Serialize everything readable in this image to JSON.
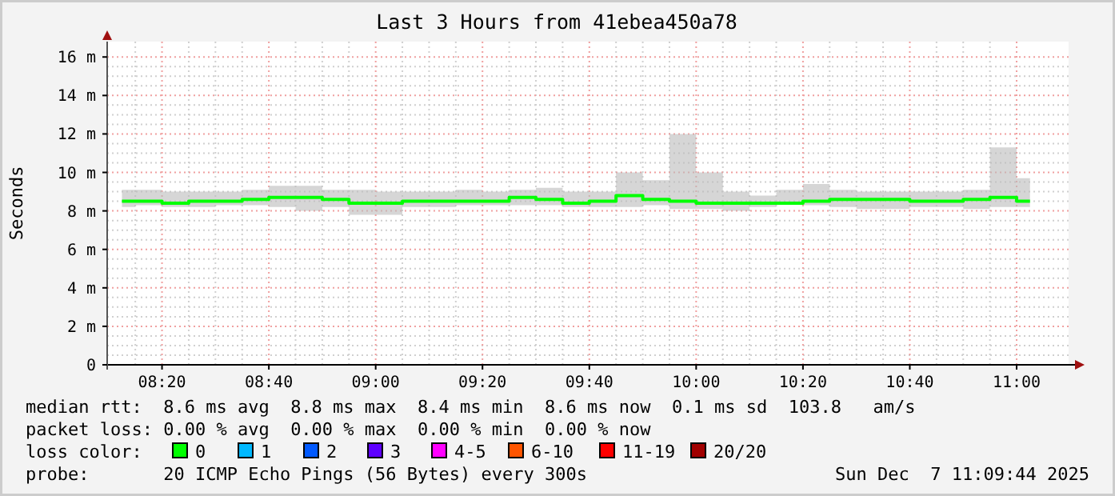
{
  "chart_data": {
    "type": "step",
    "title": "Last 3 Hours from 41ebea450a78",
    "ylabel": "Seconds",
    "x": [
      8.2083,
      8.2917,
      8.375,
      8.4583,
      8.5417,
      8.625,
      8.7083,
      8.7917,
      8.875,
      8.9583,
      9.0417,
      9.125,
      9.2083,
      9.2917,
      9.375,
      9.4583,
      9.5417,
      9.625,
      9.7083,
      9.7917,
      9.875,
      9.9583,
      10.0417,
      10.125,
      10.2083,
      10.2917,
      10.375,
      10.4583,
      10.5417,
      10.625,
      10.7083,
      10.7917,
      10.875,
      10.9583,
      11.0417
    ],
    "series": [
      {
        "color": "#00ff00",
        "values": [
          8.5,
          8.5,
          8.4,
          8.5,
          8.5,
          8.6,
          8.7,
          8.7,
          8.6,
          8.4,
          8.4,
          8.5,
          8.5,
          8.5,
          8.5,
          8.7,
          8.6,
          8.4,
          8.5,
          8.8,
          8.6,
          8.5,
          8.4,
          8.4,
          8.4,
          8.4,
          8.5,
          8.6,
          8.6,
          8.6,
          8.5,
          8.5,
          8.6,
          8.7,
          8.5
        ],
        "lower": [
          8.2,
          8.3,
          8.2,
          8.2,
          8.3,
          8.3,
          8.2,
          8.0,
          8.2,
          7.8,
          7.8,
          8.2,
          8.2,
          8.3,
          8.3,
          8.3,
          8.3,
          8.2,
          8.2,
          8.2,
          8.3,
          8.1,
          8.1,
          8.0,
          8.2,
          8.4,
          8.3,
          8.2,
          8.1,
          8.1,
          8.2,
          8.2,
          8.1,
          8.2,
          8.2
        ],
        "upper": [
          9.1,
          9.1,
          9.0,
          9.0,
          9.0,
          9.1,
          9.3,
          9.3,
          9.1,
          9.1,
          9.0,
          9.0,
          9.0,
          9.1,
          9.0,
          9.1,
          9.2,
          9.0,
          9.0,
          10.0,
          9.6,
          12.0,
          10.0,
          9.0,
          8.8,
          9.1,
          9.4,
          9.1,
          9.0,
          9.0,
          9.0,
          9.0,
          9.1,
          11.3,
          9.7
        ]
      }
    ],
    "xlim": [
      8.1622,
      11.1622
    ],
    "xticks": [
      {
        "value": 8.3333,
        "label": "08:20"
      },
      {
        "value": 8.6667,
        "label": "08:40"
      },
      {
        "value": 9.0,
        "label": "09:00"
      },
      {
        "value": 9.3333,
        "label": "09:20"
      },
      {
        "value": 9.6667,
        "label": "09:40"
      },
      {
        "value": 10.0,
        "label": "10:00"
      },
      {
        "value": 10.3333,
        "label": "10:20"
      },
      {
        "value": 10.6667,
        "label": "10:40"
      },
      {
        "value": 11.0,
        "label": "11:00"
      }
    ],
    "ylim": [
      0,
      16.8
    ],
    "yticks": [
      {
        "value": 0,
        "label": "0"
      },
      {
        "value": 2,
        "label": "2 m"
      },
      {
        "value": 4,
        "label": "4 m"
      },
      {
        "value": 6,
        "label": "6 m"
      },
      {
        "value": 8,
        "label": "8 m"
      },
      {
        "value": 10,
        "label": "10 m"
      },
      {
        "value": 12,
        "label": "12 m"
      },
      {
        "value": 14,
        "label": "14 m"
      },
      {
        "value": 16,
        "label": "16 m"
      }
    ],
    "grid": true,
    "annotations": [
      "median rtt:  8.6 ms avg  8.8 ms max  8.4 ms min  8.6 ms now  0.1 ms sd  103.8   am/s",
      "packet loss: 0.00 % avg  0.00 % max  0.00 % min  0.00 % now",
      "loss color:",
      "0",
      "1",
      "2",
      "3",
      "4-5",
      "6-10",
      "11-19",
      "20/20",
      "probe:       20 ICMP Echo Pings (56 Bytes) every 300s",
      "Sun Dec  7 11:09:44 2025"
    ]
  }
}
